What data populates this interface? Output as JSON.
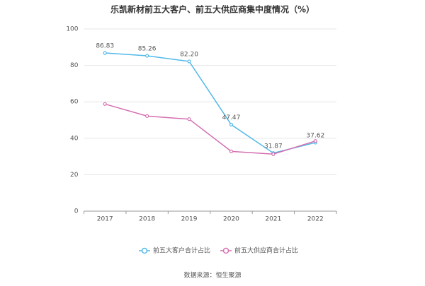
{
  "chart_data": {
    "type": "line",
    "title": "乐凯新材前五大客户、前五大供应商集中度情况（%）",
    "categories": [
      "2017",
      "2018",
      "2019",
      "2020",
      "2021",
      "2022"
    ],
    "series": [
      {
        "name": "前五大客户合计占比",
        "color": "#52b9e9",
        "values": [
          86.83,
          85.26,
          82.2,
          47.47,
          31.87,
          37.62
        ],
        "value_labels": [
          "86.83",
          "85.26",
          "82.20",
          "47.47",
          "31.87",
          "37.62"
        ]
      },
      {
        "name": "前五大供应商合计占比",
        "color": "#d46fb0",
        "values": [
          58.8,
          52.2,
          50.5,
          32.8,
          31.3,
          38.5
        ]
      }
    ],
    "ylim": [
      0,
      100
    ],
    "yticks": [
      0,
      20,
      40,
      60,
      80,
      100
    ],
    "grid": true,
    "source": "数据来源：恒生聚源"
  }
}
